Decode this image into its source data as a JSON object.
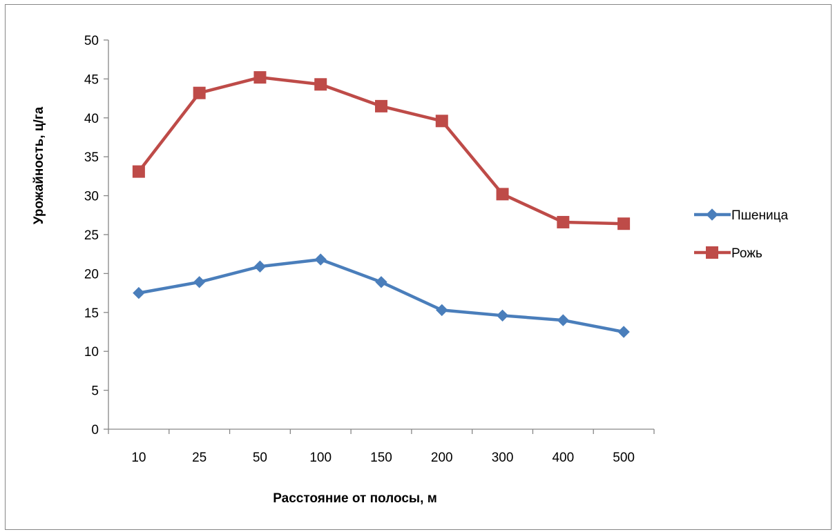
{
  "chart_data": {
    "type": "line",
    "categories": [
      "10",
      "25",
      "50",
      "100",
      "150",
      "200",
      "300",
      "400",
      "500"
    ],
    "series": [
      {
        "name": "Пшеница",
        "values": [
          17.5,
          18.9,
          20.9,
          21.8,
          18.9,
          15.3,
          14.6,
          14.0,
          12.5
        ],
        "color": "#4a7ebb",
        "marker": "diamond"
      },
      {
        "name": "Рожь",
        "values": [
          33.1,
          43.2,
          45.2,
          44.3,
          41.5,
          39.6,
          30.2,
          26.6,
          26.4
        ],
        "color": "#be4b48",
        "marker": "square"
      }
    ],
    "xlabel": "Расстояние от полосы, м",
    "ylabel": "Урожайность, ц/га",
    "ylim": [
      0,
      50
    ],
    "yticks": [
      "0",
      "5",
      "10",
      "15",
      "20",
      "25",
      "30",
      "35",
      "40",
      "45",
      "50"
    ],
    "grid": false,
    "legend_position": "right"
  }
}
